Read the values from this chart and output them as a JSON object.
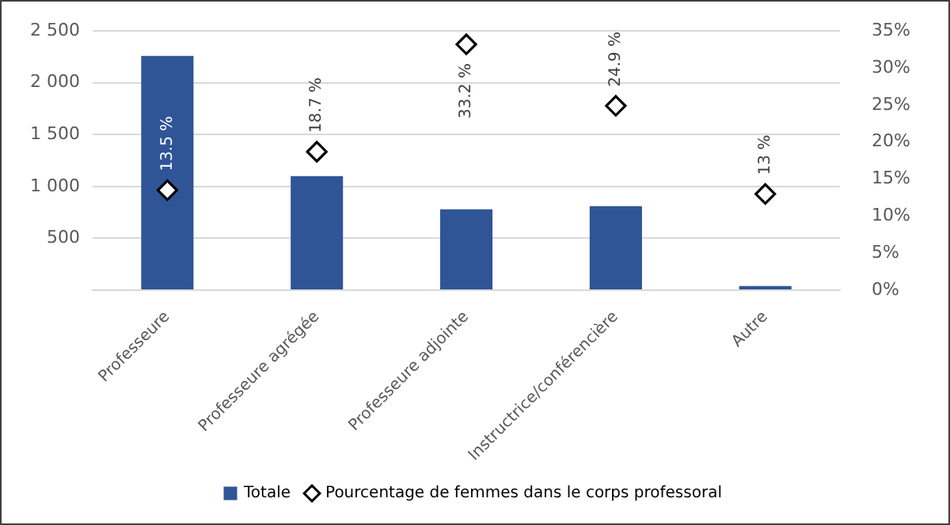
{
  "chart_data": {
    "type": "bar",
    "categories": [
      "Professeure",
      "Professeure agrégée",
      "Professeure adjointe",
      "Instructrice/conférencière",
      "Autre"
    ],
    "series": [
      {
        "name": "Totale",
        "color": "#2f5597",
        "values": [
          2260,
          1100,
          780,
          810,
          40
        ]
      },
      {
        "name": "Pourcentage de femmes dans le corps professoral",
        "type": "scatter",
        "axis": "y2",
        "color": "#000000",
        "marker": "diamond",
        "values": [
          13.5,
          18.7,
          33.2,
          24.9,
          13
        ],
        "value_labels": [
          "13.5 %",
          "18.7 %",
          "33.2 %",
          "24.9 %",
          "13 %"
        ]
      }
    ],
    "ylim": [
      0,
      2500
    ],
    "yticks": [
      {
        "value": 0,
        "label": null
      },
      500,
      {
        "value": 1000,
        "label": "1 000"
      },
      {
        "value": 1500,
        "label": "1 500"
      },
      {
        "value": 2000,
        "label": "2 000"
      },
      {
        "value": 2500,
        "label": "2 500"
      }
    ],
    "y2lim": [
      0,
      35
    ],
    "y2ticks": [
      {
        "value": 0,
        "label": "0%"
      },
      {
        "value": 5,
        "label": "5%"
      },
      {
        "value": 10,
        "label": "10%"
      },
      {
        "value": 15,
        "label": "15%"
      },
      {
        "value": 20,
        "label": "20%"
      },
      {
        "value": 25,
        "label": "25%"
      },
      {
        "value": 30,
        "label": "30%"
      },
      {
        "value": 35,
        "label": "35%"
      }
    ],
    "grid": "y",
    "legend": "bottom"
  }
}
